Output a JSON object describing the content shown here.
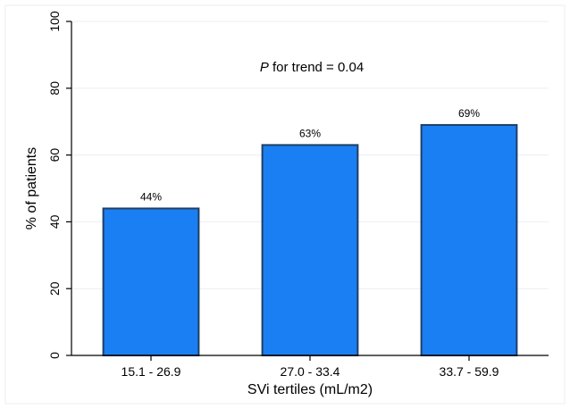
{
  "chart_data": {
    "type": "bar",
    "categories": [
      "15.1 - 26.9",
      "27.0 - 33.4",
      "33.7 - 59.9"
    ],
    "values": [
      44,
      63,
      69
    ],
    "data_labels": [
      "44%",
      "63%",
      "69%"
    ],
    "xlabel": "SVi tertiles (mL/m2)",
    "ylabel": "% of patients",
    "ylim": [
      0,
      100
    ],
    "yticks": [
      0,
      20,
      40,
      60,
      80,
      100
    ],
    "grid": true,
    "annotation": {
      "italic_part": "P",
      "rest": " for trend = 0.04"
    },
    "bar_color": "#1a7ff2",
    "bar_edge_color": "#1f3f66",
    "grid_color": "#eaeff3"
  }
}
